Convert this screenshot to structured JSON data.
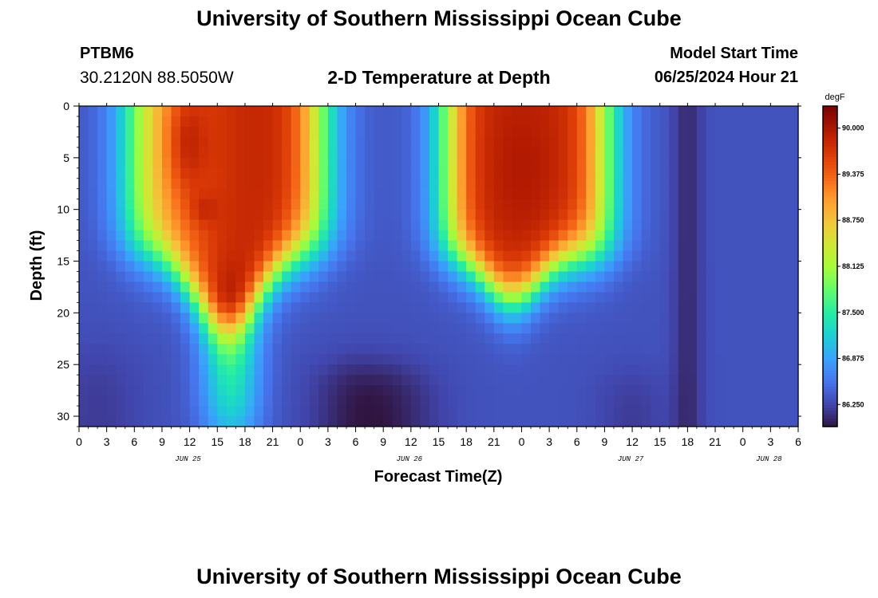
{
  "page": {
    "title": "University of Southern Mississippi Ocean Cube",
    "footer_title": "University of Southern Mississippi Ocean Cube",
    "station_id": "PTBM6",
    "station_coords": "30.2120N  88.5050W",
    "subtitle": "2-D Temperature at Depth",
    "model_start_label": "Model Start Time",
    "model_start_value": "06/25/2024 Hour 21"
  },
  "chart_data": {
    "type": "heatmap",
    "title": "2-D Temperature at Depth",
    "xlabel": "Forecast Time(Z)",
    "ylabel": "Depth (ft)",
    "x_range_hours": [
      0,
      78
    ],
    "y_range_ft": [
      0,
      31
    ],
    "x_tick_labels": [
      "0",
      "3",
      "6",
      "9",
      "12",
      "15",
      "18",
      "21",
      "0",
      "3",
      "6",
      "9",
      "12",
      "15",
      "18",
      "21",
      "0",
      "3",
      "6",
      "9",
      "12",
      "15",
      "18",
      "21",
      "0",
      "3",
      "6"
    ],
    "date_labels": [
      {
        "text": "JUN 25",
        "hour": 12
      },
      {
        "text": "JUN 26",
        "hour": 36
      },
      {
        "text": "JUN 27",
        "hour": 60
      },
      {
        "text": "JUN 28",
        "hour": 75
      }
    ],
    "y_ticks": [
      0,
      5,
      10,
      15,
      20,
      25,
      30
    ],
    "colorbar": {
      "unit": "degF",
      "min": 85.95,
      "max": 90.3,
      "ticks": [
        "90.000",
        "89.375",
        "88.750",
        "88.125",
        "87.500",
        "86.875",
        "86.250"
      ],
      "tick_values": [
        90.0,
        89.375,
        88.75,
        88.125,
        87.5,
        86.875,
        86.25
      ]
    },
    "grid_resolution": {
      "hours_step": 1,
      "depth_step_ft": 1
    },
    "features": [
      {
        "desc": "warm layer",
        "hours": [
          6,
          24
        ],
        "depth_ft": [
          0,
          18
        ],
        "peak_degF": 90.3
      },
      {
        "desc": "warm layer",
        "hours": [
          42,
          54
        ],
        "depth_ft": [
          0,
          16
        ],
        "peak_degF": 89.9
      },
      {
        "desc": "cool bottom water",
        "hours": [
          27,
          45
        ],
        "depth_ft": [
          25,
          31
        ],
        "min_degF": 86.0
      },
      {
        "desc": "cool column",
        "hours": [
          64,
          68
        ],
        "depth_ft": [
          0,
          31
        ],
        "min_degF": 86.1
      }
    ]
  },
  "colors": {
    "turbo_stops": [
      "#30123b",
      "#4145ab",
      "#4675ed",
      "#39a2fc",
      "#1bcfd4",
      "#24eca6",
      "#61fc6c",
      "#a4fc3b",
      "#d1e834",
      "#f3c63a",
      "#fe9b2d",
      "#f36315",
      "#d93806",
      "#b11901",
      "#7a0402"
    ]
  }
}
